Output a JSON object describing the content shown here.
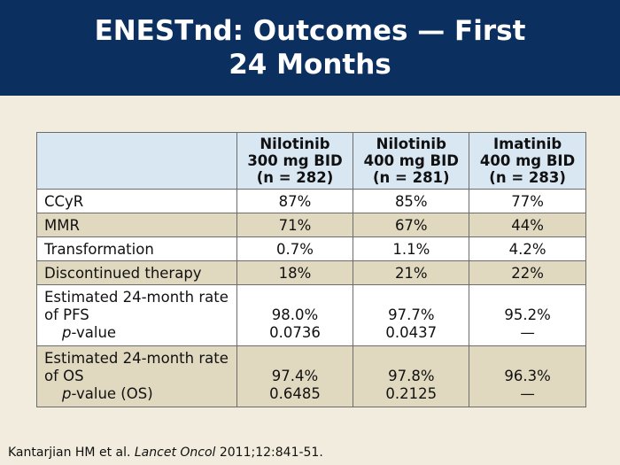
{
  "title": {
    "line1": "ENESTnd: Outcomes — First",
    "line2": "24 Months"
  },
  "table": {
    "columns": [
      {
        "name": "Nilotinib",
        "dose": "300 mg BID",
        "n": "(n = 282)"
      },
      {
        "name": "Nilotinib",
        "dose": "400 mg BID",
        "n": "(n = 281)"
      },
      {
        "name": "Imatinib",
        "dose": "400 mg BID",
        "n": "(n = 283)"
      }
    ],
    "rows": [
      {
        "label": "CCyR",
        "values": [
          "87%",
          "85%",
          "77%"
        ]
      },
      {
        "label": "MMR",
        "values": [
          "71%",
          "67%",
          "44%"
        ]
      },
      {
        "label": "Transformation",
        "values": [
          "0.7%",
          "1.1%",
          "4.2%"
        ]
      },
      {
        "label": "Discontinued therapy",
        "values": [
          "18%",
          "21%",
          "22%"
        ]
      }
    ],
    "pfs": {
      "label_line1": "Estimated 24-month rate",
      "label_line2": "of PFS",
      "p_italic": "p",
      "p_rest": "-value",
      "values": [
        "98.0%",
        "97.7%",
        "95.2%"
      ],
      "p_values": [
        "0.0736",
        "0.0437",
        "—"
      ]
    },
    "os": {
      "label_line1": "Estimated 24-month rate",
      "label_line2": "of OS",
      "p_italic": "p",
      "p_rest": "-value (OS)",
      "values": [
        "97.4%",
        "97.8%",
        "96.3%"
      ],
      "p_values": [
        "0.6485",
        "0.2125",
        "—"
      ]
    }
  },
  "citation": {
    "authors": "Kantarjian HM et al. ",
    "journal": "Lancet Oncol",
    "details": " 2011;12:841-51."
  },
  "colors": {
    "title_bar": "#0b2f5e",
    "background": "#f1ecdd",
    "header_fill": "#d9e7f3",
    "alt_row_fill": "#e0d8bf"
  }
}
